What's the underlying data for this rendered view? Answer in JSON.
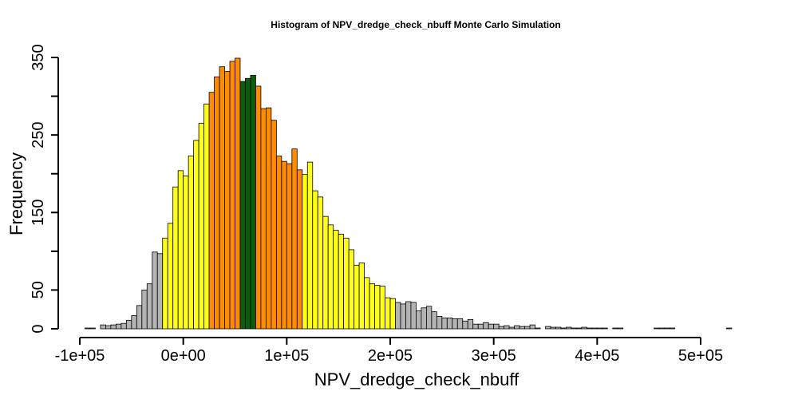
{
  "chart_data": {
    "type": "bar",
    "title": "Histogram of  NPV_dredge_check_nbuff  Monte Carlo Simulation",
    "xlabel": "NPV_dredge_check_nbuff",
    "ylabel": "Frequency",
    "xlim": [
      -100000,
      545000
    ],
    "ylim": [
      0,
      350
    ],
    "bin_width": 5000,
    "x_start": -95000,
    "x_ticks": [
      -100000,
      0,
      100000,
      200000,
      300000,
      400000,
      500000
    ],
    "x_tick_labels": [
      "-1e+05",
      "0e+00",
      "1e+05",
      "2e+05",
      "3e+05",
      "4e+05",
      "5e+05"
    ],
    "y_ticks": [
      0,
      50,
      100,
      150,
      200,
      250,
      300,
      350
    ],
    "y_tick_labels": [
      "0",
      "50",
      "",
      "150",
      "",
      "250",
      "",
      "350"
    ],
    "grid": false,
    "legend": "none",
    "colors": {
      "tail": "#b3b3b3",
      "inner_band": "#ffff1a",
      "central_band": "#ff8c00",
      "center": "#0b5c0b"
    },
    "series": [
      {
        "values": [
          1,
          1,
          0,
          5,
          4,
          5,
          6,
          7,
          11,
          17,
          30,
          50,
          58,
          99,
          97,
          117,
          136,
          183,
          204,
          197,
          223,
          243,
          265,
          290,
          305,
          325,
          338,
          332,
          345,
          349,
          319,
          323,
          327,
          313,
          284,
          285,
          269,
          223,
          216,
          213,
          232,
          205,
          199,
          215,
          178,
          170,
          145,
          134,
          127,
          122,
          117,
          102,
          82,
          85,
          66,
          58,
          56,
          55,
          40,
          39,
          34,
          32,
          35,
          34,
          23,
          27,
          29,
          22,
          16,
          14,
          14,
          13,
          13,
          10,
          12,
          6,
          6,
          8,
          6,
          6,
          3,
          4,
          2,
          4,
          3,
          3,
          5,
          1,
          0,
          3,
          2,
          2,
          1,
          2,
          1,
          1,
          2,
          1,
          1,
          1,
          1,
          0,
          1,
          1,
          0,
          0,
          0,
          0,
          0,
          0,
          1,
          1,
          1,
          1,
          0,
          0,
          0,
          0,
          0,
          0,
          0,
          0,
          0,
          0,
          1,
          0,
          0,
          0,
          0
        ],
        "color_bands": "tail until x=-20000; inner_band -20000..25000; central_band 25000..55000; center 55000..70000; central_band 70000..115000; inner_band 115000..205000; tail after"
      }
    ]
  }
}
